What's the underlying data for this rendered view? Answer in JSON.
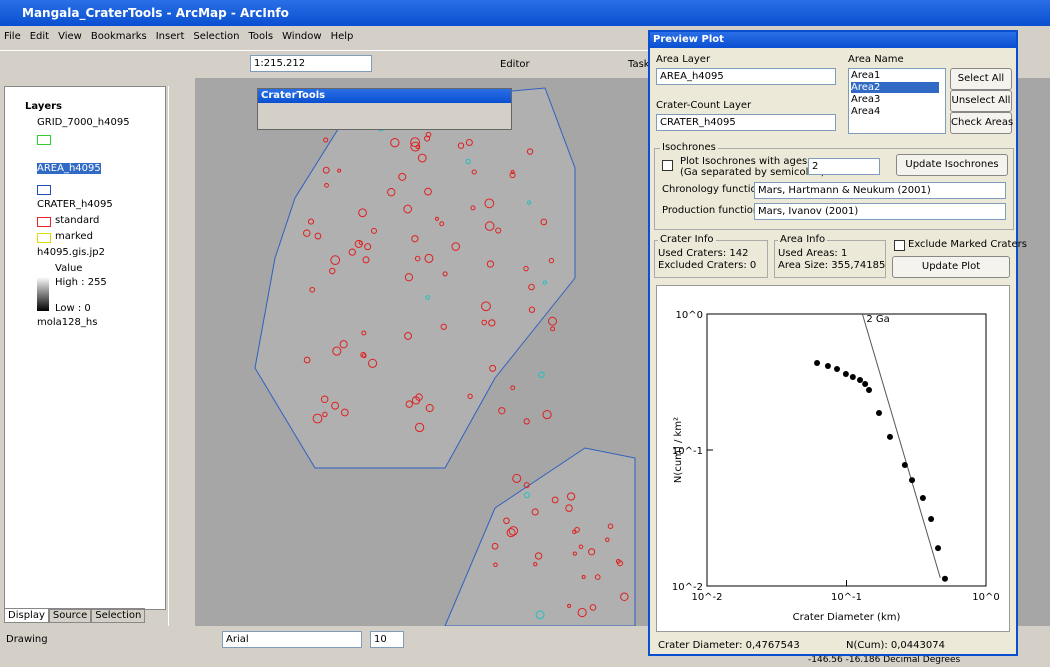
{
  "window": {
    "title": "Mangala_CraterTools - ArcMap - ArcInfo"
  },
  "menu": [
    "File",
    "Edit",
    "View",
    "Bookmarks",
    "Insert",
    "Selection",
    "Tools",
    "Window",
    "Help"
  ],
  "toolbar": {
    "scale": "1:215.212",
    "editor": "Editor",
    "task": "Task"
  },
  "toc": {
    "root": "Layers",
    "layers": [
      "GRID_7000_h4095",
      "AREA_h4095",
      "CRATER_h4095",
      "h4095.gis.jp2",
      "mola128_hs"
    ],
    "crater_classes": [
      "standard",
      "marked"
    ],
    "raster": [
      "Value",
      "High : 255",
      "Low : 0"
    ],
    "tabs": [
      "Display",
      "Source",
      "Selection"
    ]
  },
  "crater_tools": {
    "title": "CraterTools"
  },
  "preview": {
    "title": "Preview Plot",
    "area_layer_label": "Area Layer",
    "area_layer": "AREA_h4095",
    "crater_layer_label": "Crater-Count Layer",
    "crater_layer": "CRATER_h4095",
    "area_name_label": "Area Name",
    "areas": [
      "Area1",
      "Area2",
      "Area3",
      "Area4"
    ],
    "buttons": [
      "Select All",
      "Unselect All",
      "Check Areas"
    ],
    "isochrones": {
      "group": "Isochrones",
      "plot_label": [
        "Plot Isochrones with ages",
        "(Ga separated by semicolon):"
      ],
      "ages": "2",
      "update": "Update Isochrones",
      "chronology_label": "Chronology function:",
      "chronology": "Mars, Hartmann & Neukum (2001)",
      "production_label": "Production function:",
      "production": "Mars, Ivanov (2001)"
    },
    "crater_info": {
      "group": "Crater Info",
      "used": "Used Craters: 142",
      "excluded": "Excluded Craters: 0"
    },
    "area_info": {
      "group": "Area Info",
      "used": "Used Areas: 1",
      "size": "Area Size: 355,74185"
    },
    "exclude": "Exclude Marked Craters",
    "update_plot": "Update Plot",
    "footer": {
      "diameter": "Crater Diameter: 0,4767543",
      "ncum": "N(Cum): 0,0443074"
    }
  },
  "plot": {
    "log_scale": true,
    "xlabel": "Crater Diameter (km)",
    "ylabel": "N(cum) / km²",
    "xlim": [
      0.01,
      1
    ],
    "ylim": [
      0.01,
      1
    ],
    "xticks": [
      {
        "value": 0.01,
        "label": "10^-2"
      },
      {
        "value": 0.1,
        "label": "10^-1"
      },
      {
        "value": 1,
        "label": "10^0"
      }
    ],
    "yticks": [
      {
        "value": 0.01,
        "label": "10^-2"
      },
      {
        "value": 0.1,
        "label": "10^-1"
      },
      {
        "value": 1,
        "label": "10^0"
      }
    ],
    "x": [
      0.0615,
      0.0736,
      0.0855,
      0.099,
      0.111,
      0.125,
      0.136,
      0.145,
      0.171,
      0.205,
      0.262,
      0.295,
      0.353,
      0.404,
      0.453,
      0.508
    ],
    "y": [
      0.436,
      0.415,
      0.394,
      0.362,
      0.344,
      0.327,
      0.306,
      0.276,
      0.187,
      0.125,
      0.0776,
      0.0601,
      0.0444,
      0.0311,
      0.019,
      0.0113
    ],
    "isochrone": {
      "label": "2 Ga",
      "x": [
        0.13,
        0.47
      ],
      "y": [
        1,
        0.0115
      ]
    }
  },
  "drawing_toolbar": {
    "drawing": "Drawing",
    "font": "Arial",
    "size": "10"
  },
  "status": {
    "coords": "-146.56  -16.186 Decimal Degrees"
  }
}
